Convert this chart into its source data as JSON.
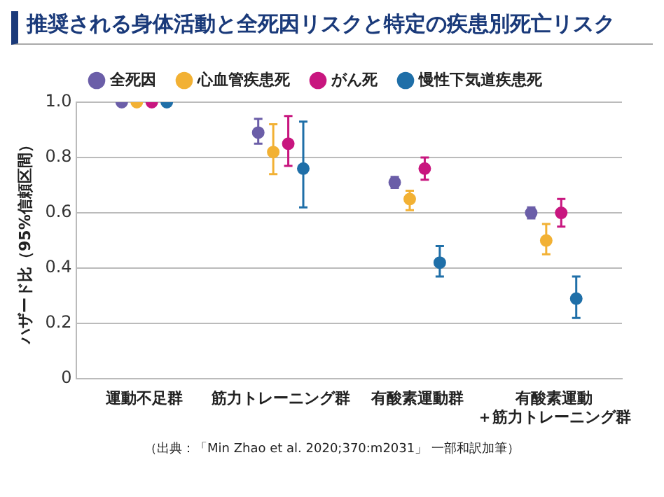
{
  "chart_data": {
    "type": "scatter",
    "title": "推奨される身体活動と全死因リスクと特定の疾患別死亡リスク",
    "ylabel": "ハザード比（95%信頼区間）",
    "categories": [
      "運動不足群",
      "筋力トレーニング群",
      "有酸素運動群",
      "有酸素運動＋筋力トレーニング群"
    ],
    "series": [
      {
        "name": "全死因",
        "color": "#6b5ea8",
        "values": [
          1.0,
          0.89,
          0.71,
          0.6
        ],
        "errors": [
          null,
          [
            0.85,
            0.94
          ],
          [
            0.69,
            0.73
          ],
          [
            0.58,
            0.62
          ]
        ]
      },
      {
        "name": "心血管疾患死",
        "color": "#f2b134",
        "values": [
          1.0,
          0.82,
          0.65,
          0.5
        ],
        "errors": [
          null,
          [
            0.74,
            0.92
          ],
          [
            0.61,
            0.68
          ],
          [
            0.45,
            0.56
          ]
        ]
      },
      {
        "name": "がん死",
        "color": "#c8167f",
        "values": [
          1.0,
          0.85,
          0.76,
          0.6
        ],
        "errors": [
          null,
          [
            0.77,
            0.95
          ],
          [
            0.72,
            0.8
          ],
          [
            0.55,
            0.65
          ]
        ]
      },
      {
        "name": "慢性下気道疾患死",
        "color": "#1f6fa8",
        "values": [
          1.0,
          0.76,
          0.42,
          0.29
        ],
        "errors": [
          null,
          [
            0.62,
            0.93
          ],
          [
            0.37,
            0.48
          ],
          [
            0.22,
            0.37
          ]
        ]
      }
    ],
    "ylim": [
      0,
      1
    ],
    "yticks": [
      0,
      0.2,
      0.4,
      0.6,
      0.8,
      {
        "value": 1,
        "label": "1.0"
      }
    ],
    "grid": "y",
    "legend": "top",
    "marker": "circle",
    "annotations": [
      "（出典：「Min Zhao et al. 2020;370:m2031」 一部和訳加筆）"
    ]
  }
}
